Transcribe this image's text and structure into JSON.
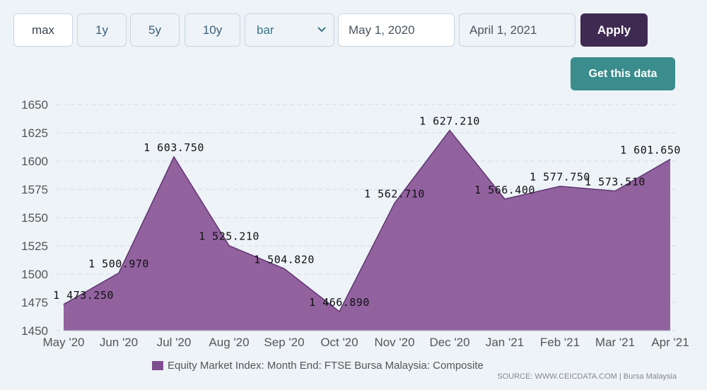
{
  "toolbar": {
    "range_buttons": [
      "max",
      "1y",
      "5y",
      "10y"
    ],
    "chart_type": "bar",
    "start_date": "May 1, 2020",
    "end_date": "April 1, 2021",
    "apply_label": "Apply",
    "get_data_label": "Get this data"
  },
  "colors": {
    "area_fill": "#8c5a9a",
    "area_stroke": "#5f3670",
    "apply_bg": "#3f2a52",
    "get_data_bg": "#3b8c8c"
  },
  "chart_data": {
    "type": "area",
    "categories": [
      "May '20",
      "Jun '20",
      "Jul '20",
      "Aug '20",
      "Sep '20",
      "Oct '20",
      "Nov '20",
      "Dec '20",
      "Jan '21",
      "Feb '21",
      "Mar '21",
      "Apr '21"
    ],
    "series": [
      {
        "name": "Equity Market Index: Month End: FTSE Bursa Malaysia: Composite",
        "values": [
          1473.25,
          1500.97,
          1603.75,
          1525.21,
          1504.82,
          1466.89,
          1562.71,
          1627.21,
          1566.4,
          1577.75,
          1573.51,
          1601.65
        ],
        "labels": [
          "1 473.250",
          "1 500.970",
          "1 603.750",
          "1 525.210",
          "1 504.820",
          "1 466.890",
          "1 562.710",
          "1 627.210",
          "1 566.400",
          "1 577.750",
          "1 573.510",
          "1 601.650"
        ]
      }
    ],
    "ylim": [
      1450,
      1650
    ],
    "yticks": [
      1450,
      1475,
      1500,
      1525,
      1550,
      1575,
      1600,
      1625,
      1650
    ],
    "grid": true,
    "legend_position": "bottom",
    "source": "SOURCE: WWW.CEICDATA.COM | Bursa Malaysia"
  }
}
